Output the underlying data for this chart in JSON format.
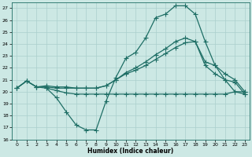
{
  "xlabel": "Humidex (Indice chaleur)",
  "xlim": [
    -0.5,
    23.5
  ],
  "ylim": [
    16,
    27.5
  ],
  "xticks": [
    0,
    1,
    2,
    3,
    4,
    5,
    6,
    7,
    8,
    9,
    10,
    11,
    12,
    13,
    14,
    15,
    16,
    17,
    18,
    19,
    20,
    21,
    22,
    23
  ],
  "yticks": [
    16,
    17,
    18,
    19,
    20,
    21,
    22,
    23,
    24,
    25,
    26,
    27
  ],
  "bg_color": "#cce8e4",
  "line_color": "#1e6e65",
  "grid_color": "#aacfcc",
  "line1_x": [
    0,
    1,
    2,
    3,
    4,
    5,
    6,
    7,
    8,
    9,
    10,
    11,
    12,
    13,
    14,
    15,
    16,
    17,
    18,
    19,
    20,
    21,
    22,
    23
  ],
  "line1_y": [
    20.3,
    20.9,
    20.4,
    20.3,
    19.5,
    18.3,
    17.2,
    16.8,
    16.8,
    19.2,
    21.2,
    22.8,
    23.3,
    24.5,
    26.2,
    26.5,
    27.2,
    27.2,
    26.5,
    24.2,
    22.2,
    21.0,
    20.0,
    19.8
  ],
  "line2_x": [
    0,
    1,
    2,
    3,
    4,
    5,
    6,
    7,
    8,
    9,
    10,
    11,
    12,
    13,
    14,
    15,
    16,
    17,
    18,
    19,
    20,
    21,
    22,
    23
  ],
  "line2_y": [
    20.3,
    20.9,
    20.4,
    20.4,
    20.3,
    20.3,
    20.3,
    20.3,
    20.3,
    20.5,
    21.0,
    21.5,
    21.8,
    22.2,
    22.7,
    23.2,
    23.7,
    24.1,
    24.2,
    22.2,
    21.5,
    21.0,
    20.8,
    19.8
  ],
  "line3_x": [
    3,
    4,
    5,
    6,
    7,
    8,
    9,
    10,
    11,
    12,
    13,
    14,
    15,
    16,
    17,
    18,
    19,
    20,
    21,
    22,
    23
  ],
  "line3_y": [
    20.3,
    20.1,
    19.9,
    19.8,
    19.8,
    19.8,
    19.8,
    19.8,
    19.8,
    19.8,
    19.8,
    19.8,
    19.8,
    19.8,
    19.8,
    19.8,
    19.8,
    19.8,
    19.8,
    20.0,
    20.0
  ],
  "line4_x": [
    0,
    1,
    2,
    3,
    4,
    5,
    6,
    7,
    8,
    9,
    10,
    11,
    12,
    13,
    14,
    15,
    16,
    17,
    18,
    19,
    20,
    21,
    22,
    23
  ],
  "line4_y": [
    20.3,
    20.9,
    20.4,
    20.5,
    20.4,
    20.4,
    20.3,
    20.3,
    20.3,
    20.5,
    21.0,
    21.6,
    22.0,
    22.5,
    23.1,
    23.6,
    24.2,
    24.5,
    24.2,
    22.5,
    22.2,
    21.5,
    21.0,
    20.0
  ]
}
